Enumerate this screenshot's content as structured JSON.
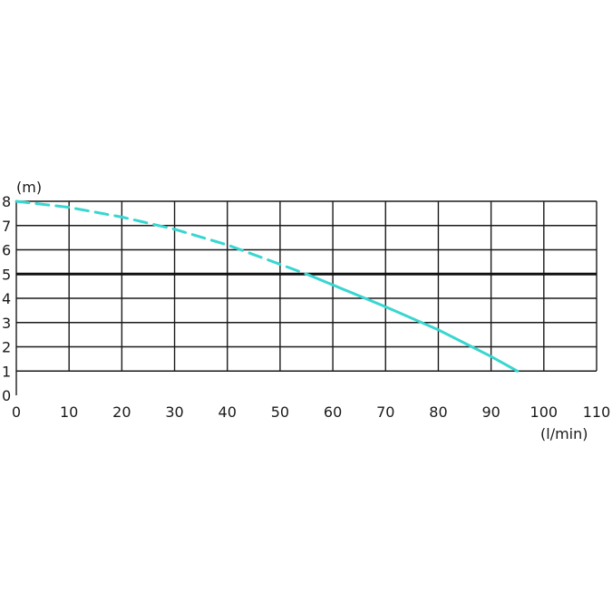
{
  "chart_data": {
    "type": "line",
    "title": "",
    "xlabel": "(l/min)",
    "ylabel": "(m)",
    "xlim": [
      0,
      110
    ],
    "ylim": [
      0,
      8
    ],
    "x_ticks": [
      "0",
      "10",
      "20",
      "30",
      "40",
      "50",
      "60",
      "70",
      "80",
      "90",
      "100",
      "110"
    ],
    "y_ticks": [
      "0",
      "1",
      "2",
      "3",
      "4",
      "5",
      "6",
      "7",
      "8"
    ],
    "grid": true,
    "reference_line": {
      "y": 5,
      "color": "#111111"
    },
    "series": [
      {
        "color": "#38d6d0",
        "x": [
          0,
          10,
          20,
          30,
          40,
          50,
          55,
          60,
          70,
          80,
          90,
          95
        ],
        "y": [
          8.0,
          7.75,
          7.35,
          6.85,
          6.2,
          5.4,
          5.0,
          4.55,
          3.65,
          2.7,
          1.6,
          1.0
        ],
        "dashed_until_x": 55
      }
    ]
  },
  "colors": {
    "grid": "#1a1a1a",
    "curve": "#38d6d0",
    "background": "#ffffff"
  }
}
